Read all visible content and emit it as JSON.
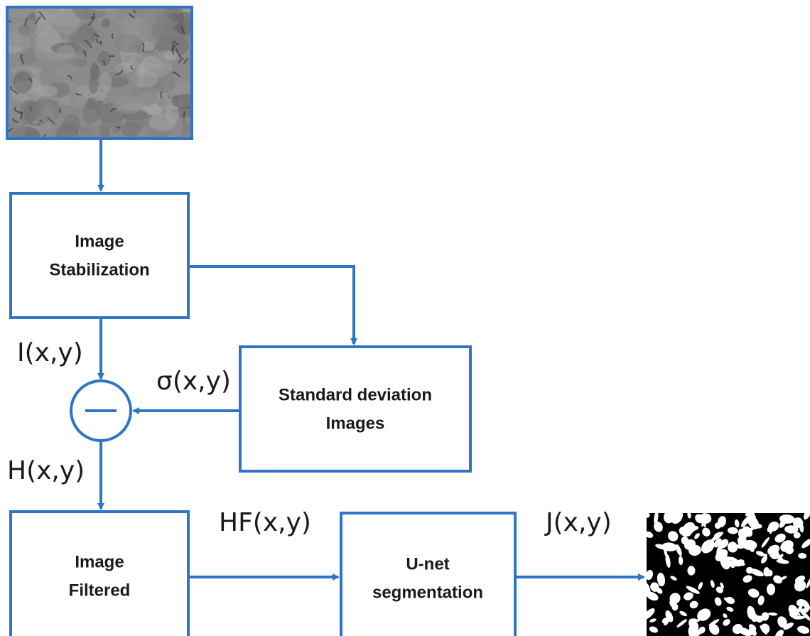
{
  "nodes": [
    {
      "label": [
        "Image",
        "Stabilization"
      ]
    },
    {
      "label": [
        "Standard deviation",
        "Images"
      ]
    },
    {
      "label": [
        "Image",
        "Filtered"
      ]
    },
    {
      "label": [
        "U-net",
        "segmentation"
      ]
    }
  ],
  "edges": [
    {
      "label": "I(x,y)"
    },
    {
      "label": "σ(x,y)"
    },
    {
      "label": "H(x,y)"
    },
    {
      "label": "HF(x,y)"
    },
    {
      "label": "J(x,y)"
    }
  ]
}
